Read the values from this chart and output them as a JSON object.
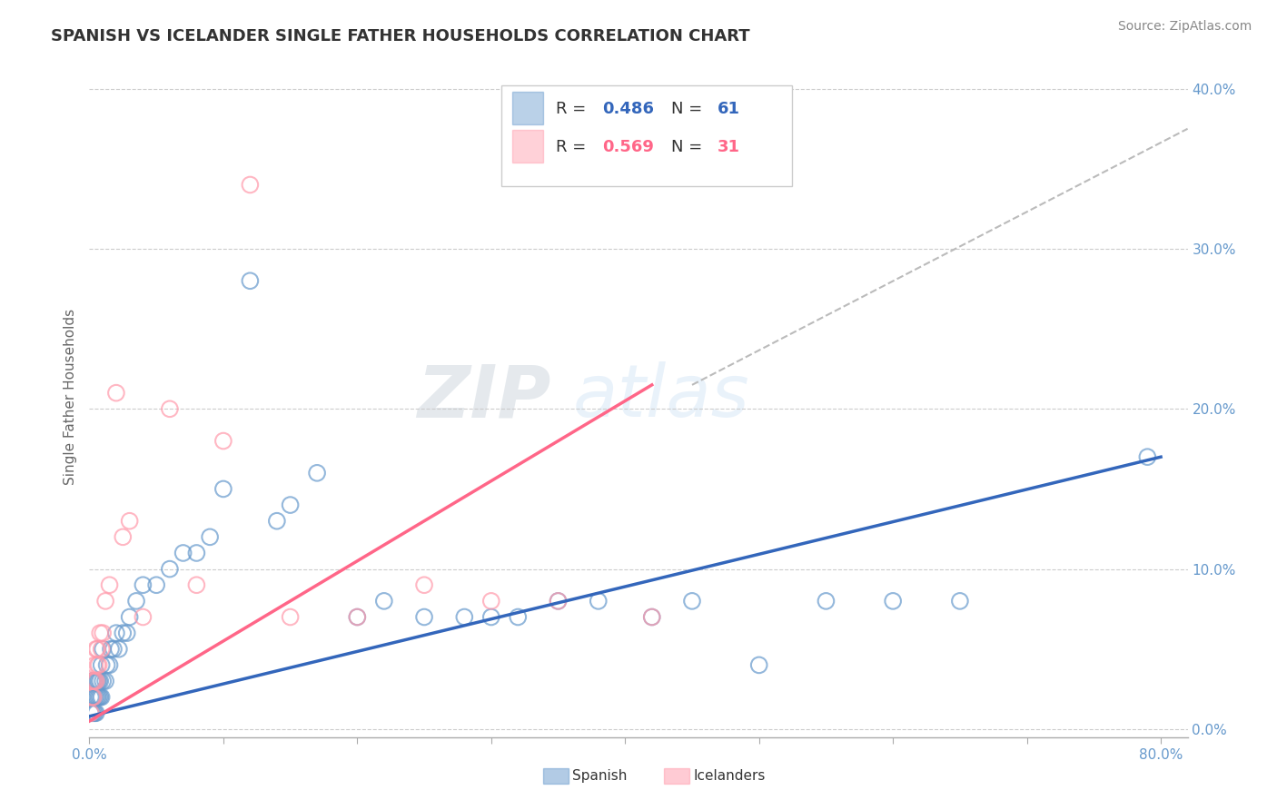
{
  "title": "SPANISH VS ICELANDER SINGLE FATHER HOUSEHOLDS CORRELATION CHART",
  "source": "Source: ZipAtlas.com",
  "ylabel": "Single Father Households",
  "xlim": [
    0.0,
    0.82
  ],
  "ylim": [
    -0.005,
    0.42
  ],
  "spanish_R": 0.486,
  "spanish_N": 61,
  "icelander_R": 0.569,
  "icelander_N": 31,
  "spanish_color": "#6699CC",
  "icelander_color": "#FF99AA",
  "spanish_line_color": "#3366BB",
  "icelander_line_color": "#FF6688",
  "dash_line_color": "#BBBBBB",
  "watermark": "ZIPatlas",
  "watermark_color_zip": "#AABBDD",
  "watermark_color_atlas": "#AABBDD",
  "title_color": "#333333",
  "source_color": "#888888",
  "tick_color": "#6699CC",
  "ylabel_color": "#666666",
  "grid_color": "#CCCCCC",
  "legend_border_color": "#CCCCCC",
  "legend_text_color": "#333333",
  "spanish_x": [
    0.001,
    0.001,
    0.002,
    0.002,
    0.002,
    0.003,
    0.003,
    0.003,
    0.004,
    0.004,
    0.004,
    0.005,
    0.005,
    0.005,
    0.006,
    0.006,
    0.007,
    0.007,
    0.008,
    0.008,
    0.009,
    0.009,
    0.01,
    0.01,
    0.012,
    0.013,
    0.015,
    0.016,
    0.018,
    0.02,
    0.022,
    0.025,
    0.028,
    0.03,
    0.035,
    0.04,
    0.05,
    0.06,
    0.07,
    0.08,
    0.09,
    0.1,
    0.12,
    0.14,
    0.15,
    0.17,
    0.2,
    0.22,
    0.25,
    0.28,
    0.3,
    0.32,
    0.35,
    0.38,
    0.42,
    0.45,
    0.5,
    0.55,
    0.6,
    0.65,
    0.79
  ],
  "spanish_y": [
    0.01,
    0.02,
    0.01,
    0.02,
    0.03,
    0.01,
    0.02,
    0.03,
    0.01,
    0.02,
    0.03,
    0.01,
    0.02,
    0.03,
    0.02,
    0.03,
    0.02,
    0.03,
    0.02,
    0.03,
    0.02,
    0.04,
    0.03,
    0.05,
    0.03,
    0.04,
    0.04,
    0.05,
    0.05,
    0.06,
    0.05,
    0.06,
    0.06,
    0.07,
    0.08,
    0.09,
    0.09,
    0.1,
    0.11,
    0.11,
    0.12,
    0.15,
    0.28,
    0.13,
    0.14,
    0.16,
    0.07,
    0.08,
    0.07,
    0.07,
    0.07,
    0.07,
    0.08,
    0.08,
    0.07,
    0.08,
    0.04,
    0.08,
    0.08,
    0.08,
    0.17
  ],
  "icelander_x": [
    0.001,
    0.002,
    0.002,
    0.003,
    0.003,
    0.004,
    0.004,
    0.005,
    0.005,
    0.006,
    0.006,
    0.007,
    0.008,
    0.009,
    0.01,
    0.012,
    0.015,
    0.02,
    0.025,
    0.03,
    0.04,
    0.06,
    0.08,
    0.1,
    0.12,
    0.15,
    0.2,
    0.25,
    0.3,
    0.35,
    0.42
  ],
  "icelander_y": [
    0.01,
    0.02,
    0.03,
    0.02,
    0.03,
    0.03,
    0.04,
    0.03,
    0.05,
    0.04,
    0.05,
    0.04,
    0.06,
    0.05,
    0.06,
    0.08,
    0.09,
    0.21,
    0.12,
    0.13,
    0.07,
    0.2,
    0.09,
    0.18,
    0.34,
    0.07,
    0.07,
    0.09,
    0.08,
    0.08,
    0.07
  ],
  "ytick_vals": [
    0.0,
    0.1,
    0.2,
    0.3,
    0.4
  ],
  "xtick_vals": [
    0.0,
    0.1,
    0.2,
    0.3,
    0.4,
    0.5,
    0.6,
    0.7,
    0.8
  ],
  "title_fontsize": 13,
  "tick_fontsize": 11,
  "ylabel_fontsize": 11,
  "source_fontsize": 10,
  "legend_fontsize": 13,
  "watermark_fontsize": 58
}
